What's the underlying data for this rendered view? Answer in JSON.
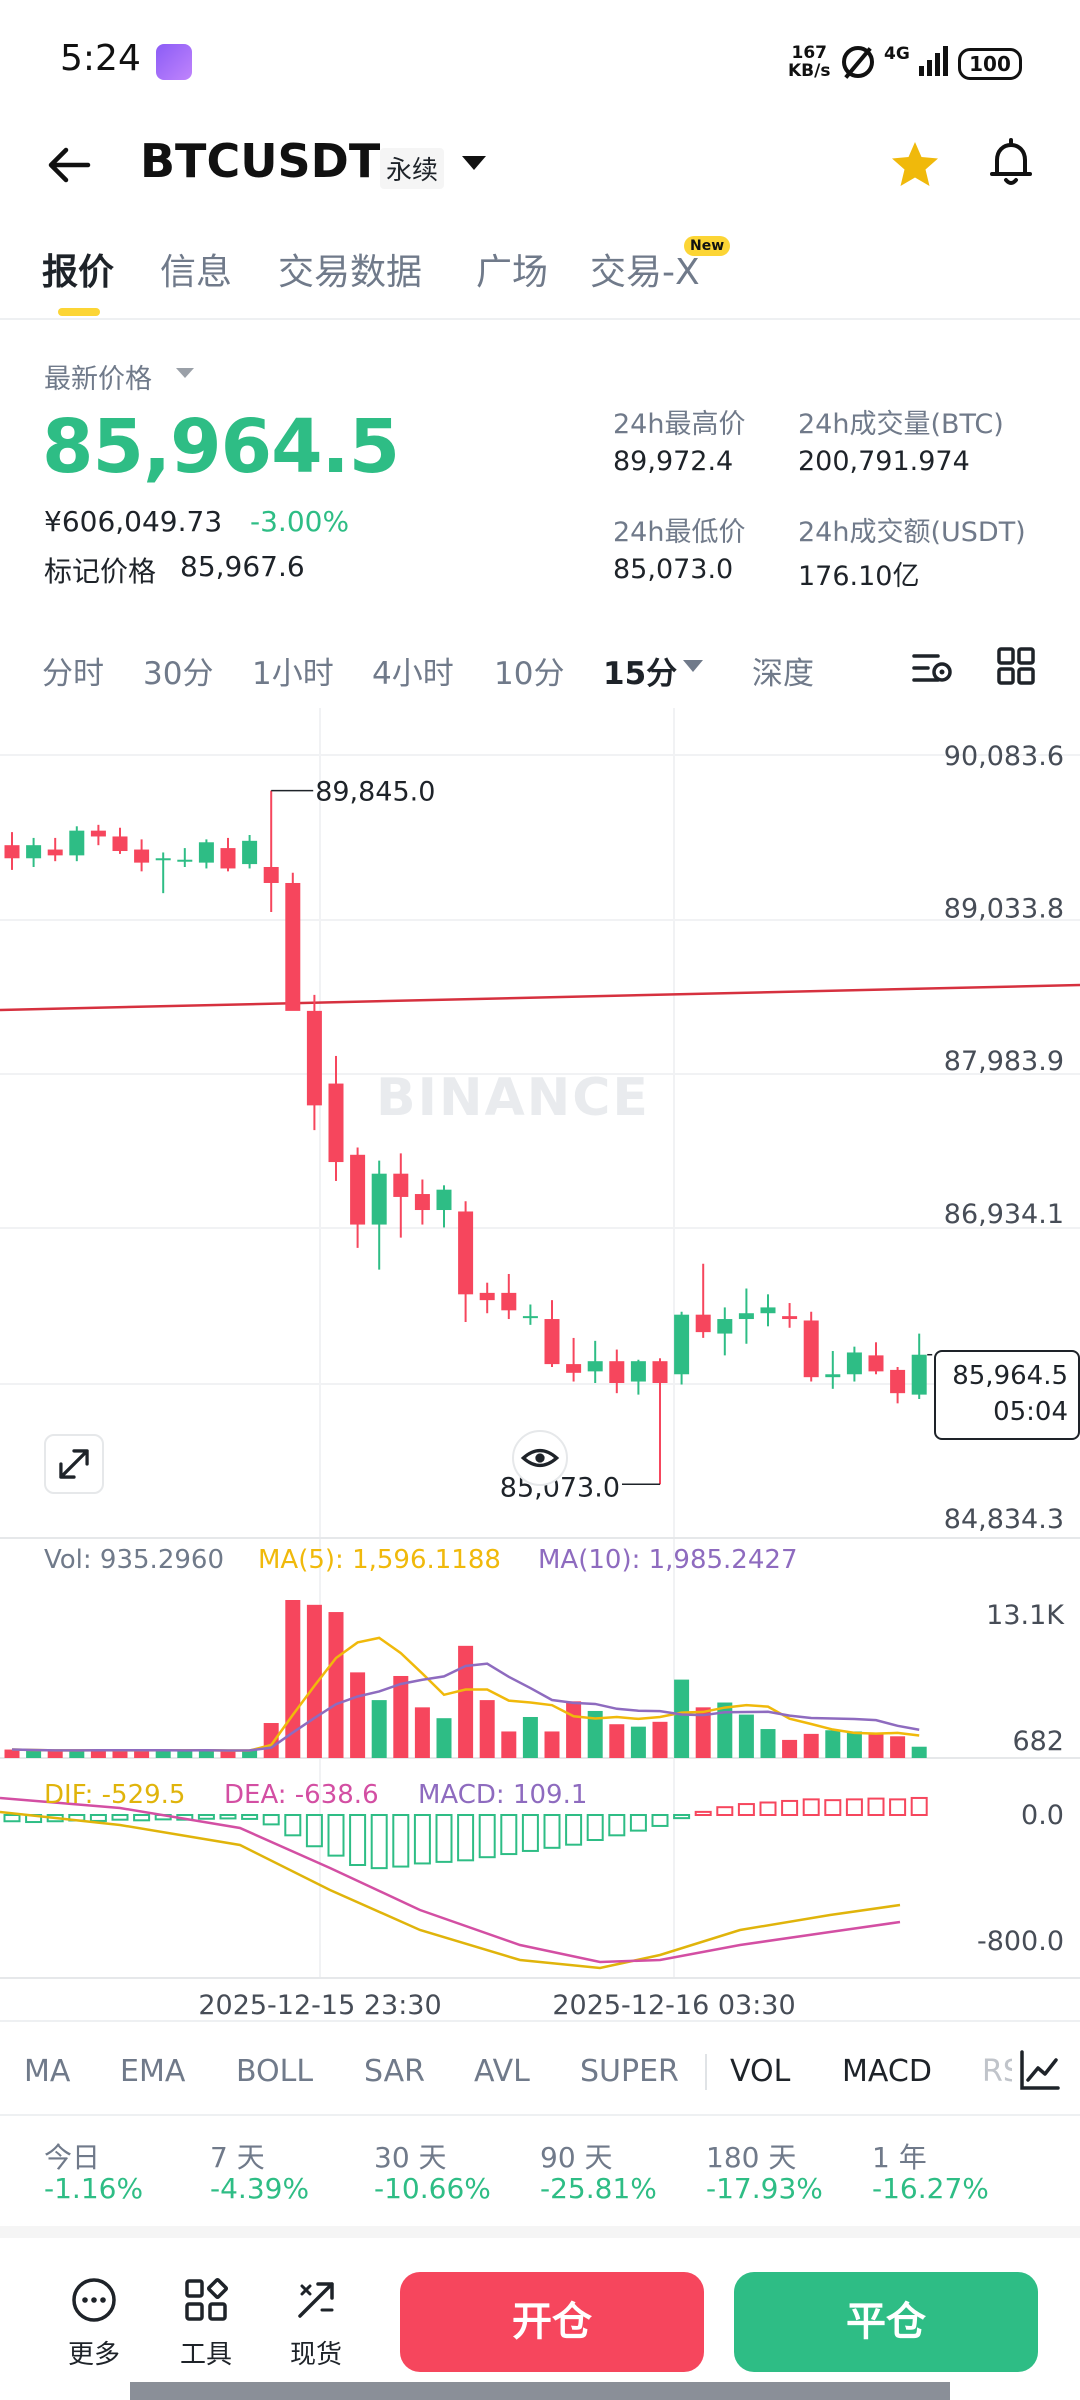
{
  "status_bar": {
    "time": "5:24",
    "net_speed_value": "167",
    "net_speed_unit": "KB/s",
    "network": "4G",
    "battery": "100"
  },
  "header": {
    "symbol": "BTCUSDT",
    "contract_type": "永续"
  },
  "tabs": [
    {
      "label": "报价"
    },
    {
      "label": "信息"
    },
    {
      "label": "交易数据"
    },
    {
      "label": "广场"
    },
    {
      "label": "交易-X"
    }
  ],
  "tab_badge": "New",
  "price": {
    "last_price_label": "最新价格",
    "last_price": "85,964.5",
    "cny_price": "¥606,049.73",
    "change_pct": "-3.00%",
    "mark_label": "标记价格",
    "mark_value": "85,967.6"
  },
  "stats": {
    "high_label": "24h最高价",
    "high_value": "89,972.4",
    "low_label": "24h最低价",
    "low_value": "85,073.0",
    "vol_btc_label": "24h成交量(BTC)",
    "vol_btc_value": "200,791.974",
    "vol_usdt_label": "24h成交额(USDT)",
    "vol_usdt_value": "176.10亿"
  },
  "intervals": [
    {
      "label": "分时"
    },
    {
      "label": "30分"
    },
    {
      "label": "1小时"
    },
    {
      "label": "4小时"
    },
    {
      "label": "10分"
    },
    {
      "label": "15分"
    },
    {
      "label": "深度"
    }
  ],
  "watermark": "BINANCE",
  "chart_data": [
    {
      "type": "candlestick",
      "price_axis_ticks": [
        "90,083.6",
        "89,033.8",
        "87,983.9",
        "86,934.1",
        "84,834.3"
      ],
      "high_marker": "89,845.0",
      "low_marker": "85,073.0",
      "current_price": "85,964.5",
      "countdown": "05:04",
      "candles": [
        {
          "o": 89470,
          "h": 89560,
          "l": 89300,
          "c": 89380
        },
        {
          "o": 89380,
          "h": 89520,
          "l": 89320,
          "c": 89470
        },
        {
          "o": 89440,
          "h": 89520,
          "l": 89360,
          "c": 89400
        },
        {
          "o": 89400,
          "h": 89600,
          "l": 89360,
          "c": 89570
        },
        {
          "o": 89570,
          "h": 89610,
          "l": 89470,
          "c": 89530
        },
        {
          "o": 89530,
          "h": 89590,
          "l": 89410,
          "c": 89430
        },
        {
          "o": 89440,
          "h": 89510,
          "l": 89290,
          "c": 89350
        },
        {
          "o": 89380,
          "h": 89420,
          "l": 89140,
          "c": 89380
        },
        {
          "o": 89370,
          "h": 89450,
          "l": 89320,
          "c": 89370
        },
        {
          "o": 89350,
          "h": 89510,
          "l": 89310,
          "c": 89490
        },
        {
          "o": 89450,
          "h": 89520,
          "l": 89290,
          "c": 89310
        },
        {
          "o": 89340,
          "h": 89540,
          "l": 89310,
          "c": 89500
        },
        {
          "o": 89320,
          "h": 89845,
          "l": 89010,
          "c": 89210
        },
        {
          "o": 89210,
          "h": 89280,
          "l": 88350,
          "c": 88330
        },
        {
          "o": 88330,
          "h": 88440,
          "l": 87510,
          "c": 87680
        },
        {
          "o": 87830,
          "h": 88020,
          "l": 87160,
          "c": 87290
        },
        {
          "o": 87340,
          "h": 87390,
          "l": 86700,
          "c": 86860
        },
        {
          "o": 86860,
          "h": 87300,
          "l": 86550,
          "c": 87210
        },
        {
          "o": 87210,
          "h": 87350,
          "l": 86770,
          "c": 87050
        },
        {
          "o": 87070,
          "h": 87170,
          "l": 86860,
          "c": 86960
        },
        {
          "o": 86960,
          "h": 87130,
          "l": 86840,
          "c": 87100
        },
        {
          "o": 86950,
          "h": 87020,
          "l": 86190,
          "c": 86380
        },
        {
          "o": 86390,
          "h": 86460,
          "l": 86250,
          "c": 86340
        },
        {
          "o": 86390,
          "h": 86520,
          "l": 86210,
          "c": 86270
        },
        {
          "o": 86230,
          "h": 86310,
          "l": 86170,
          "c": 86230
        },
        {
          "o": 86210,
          "h": 86340,
          "l": 85880,
          "c": 85900
        },
        {
          "o": 85900,
          "h": 86080,
          "l": 85780,
          "c": 85840
        },
        {
          "o": 85850,
          "h": 86060,
          "l": 85770,
          "c": 85920
        },
        {
          "o": 85920,
          "h": 86000,
          "l": 85700,
          "c": 85770
        },
        {
          "o": 85780,
          "h": 85930,
          "l": 85690,
          "c": 85920
        },
        {
          "o": 85920,
          "h": 85940,
          "l": 85073,
          "c": 85770
        },
        {
          "o": 85830,
          "h": 86260,
          "l": 85760,
          "c": 86240
        },
        {
          "o": 86240,
          "h": 86590,
          "l": 86080,
          "c": 86120
        },
        {
          "o": 86110,
          "h": 86290,
          "l": 85960,
          "c": 86210
        },
        {
          "o": 86210,
          "h": 86420,
          "l": 86040,
          "c": 86250
        },
        {
          "o": 86250,
          "h": 86380,
          "l": 86160,
          "c": 86290
        },
        {
          "o": 86230,
          "h": 86320,
          "l": 86150,
          "c": 86210
        },
        {
          "o": 86200,
          "h": 86260,
          "l": 85780,
          "c": 85810
        },
        {
          "o": 85810,
          "h": 85990,
          "l": 85730,
          "c": 85830
        },
        {
          "o": 85830,
          "h": 86020,
          "l": 85780,
          "c": 85980
        },
        {
          "o": 85960,
          "h": 86050,
          "l": 85830,
          "c": 85850
        },
        {
          "o": 85860,
          "h": 85880,
          "l": 85630,
          "c": 85700
        },
        {
          "o": 85690,
          "h": 86110,
          "l": 85660,
          "c": 85964.5
        }
      ]
    },
    {
      "type": "volume",
      "legend": {
        "vol": "Vol: 935.2960",
        "ma5": "MA(5): 1,596.1188",
        "ma10": "MA(10): 1,985.2427"
      },
      "axis_ticks": [
        "13.1K",
        "682"
      ],
      "values": [
        700,
        620,
        580,
        620,
        680,
        640,
        660,
        600,
        620,
        680,
        560,
        640,
        2900,
        13100,
        12700,
        12100,
        7100,
        4800,
        6800,
        4200,
        3300,
        9300,
        4800,
        2200,
        3400,
        2200,
        4700,
        3900,
        2800,
        2600,
        3000,
        6500,
        4200,
        4600,
        3600,
        2400,
        1500,
        2000,
        2300,
        2200,
        2100,
        1800,
        935
      ]
    },
    {
      "type": "macd",
      "legend": {
        "dif": "DIF: -529.5",
        "dea": "DEA: -638.6",
        "macd": "MACD: 109.1"
      },
      "axis_ticks": [
        "0.0",
        "-800.0"
      ],
      "x_labels": [
        "2025-12-15 23:30",
        "2025-12-16 03:30"
      ],
      "hist": [
        -40,
        -45,
        -40,
        -35,
        -38,
        -30,
        -34,
        -28,
        -30,
        -24,
        -22,
        -25,
        -60,
        -130,
        -200,
        -260,
        -320,
        -340,
        -330,
        -310,
        -300,
        -290,
        -270,
        -250,
        -230,
        -210,
        -190,
        -160,
        -130,
        -100,
        -70,
        -20,
        20,
        50,
        70,
        80,
        90,
        100,
        95,
        100,
        105,
        100,
        109.1
      ]
    }
  ],
  "indicators": [
    {
      "label": "MA"
    },
    {
      "label": "EMA"
    },
    {
      "label": "BOLL"
    },
    {
      "label": "SAR"
    },
    {
      "label": "AVL"
    },
    {
      "label": "SUPER"
    },
    {
      "label": "VOL"
    },
    {
      "label": "MACD"
    },
    {
      "label": "RSI"
    }
  ],
  "performance": [
    {
      "label": "今日",
      "value": "-1.16%"
    },
    {
      "label": "7 天",
      "value": "-4.39%"
    },
    {
      "label": "30 天",
      "value": "-10.66%"
    },
    {
      "label": "90 天",
      "value": "-25.81%"
    },
    {
      "label": "180 天",
      "value": "-17.93%"
    },
    {
      "label": "1 年",
      "value": "-16.27%"
    }
  ],
  "bottom_bar": {
    "more": "更多",
    "tools": "工具",
    "spot": "现货",
    "open": "开仓",
    "close": "平仓"
  },
  "colors": {
    "up": "#2ebd85",
    "down": "#f6465d",
    "accent": "#fcd535"
  }
}
